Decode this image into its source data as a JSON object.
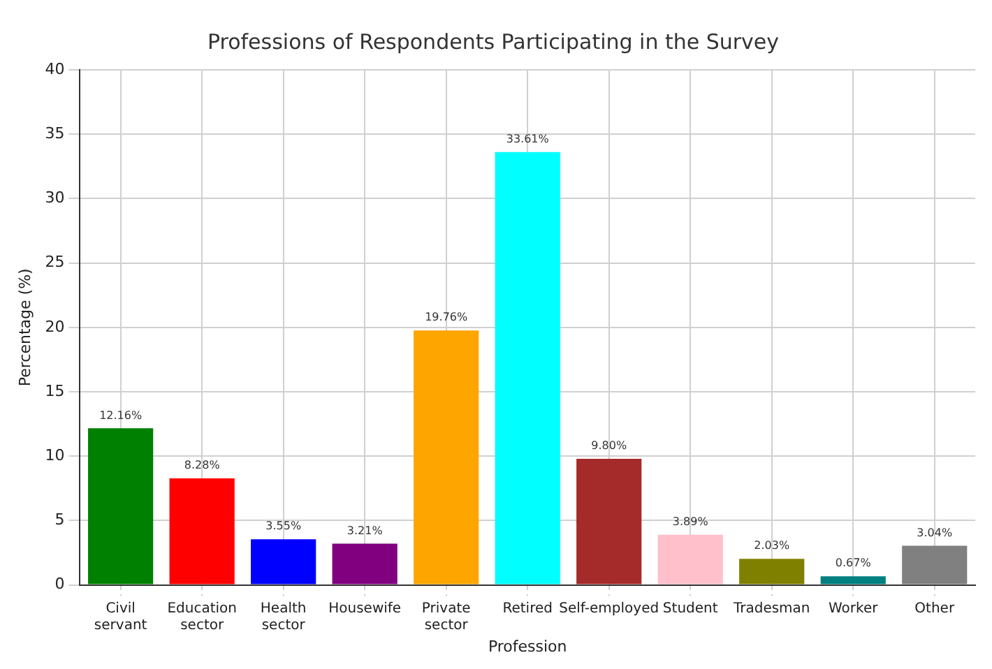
{
  "chart_data": {
    "type": "bar",
    "title": "Professions of Respondents Participating in the Survey",
    "xlabel": "Profession",
    "ylabel": "Percentage (%)",
    "categories": [
      "Civil servant",
      "Education sector",
      "Health sector",
      "Housewife",
      "Private sector",
      "Retired",
      "Self-employed",
      "Student",
      "Tradesman",
      "Worker",
      "Other"
    ],
    "values": [
      12.16,
      8.28,
      3.55,
      3.21,
      19.76,
      33.61,
      9.8,
      3.89,
      2.03,
      0.67,
      3.04
    ],
    "value_labels": [
      "12.16%",
      "8.28%",
      "3.55%",
      "3.21%",
      "19.76%",
      "33.61%",
      "9.80%",
      "3.89%",
      "2.03%",
      "0.67%",
      "3.04%"
    ],
    "colors": [
      "#008000",
      "#ff0000",
      "#0000ff",
      "#800080",
      "#ffa500",
      "#00ffff",
      "#a52a2a",
      "#ffc0cb",
      "#808000",
      "#008080",
      "#808080"
    ],
    "ylim": [
      0,
      40
    ],
    "yticks": [
      0,
      5,
      10,
      15,
      20,
      25,
      30,
      35,
      40
    ],
    "grid": true
  }
}
